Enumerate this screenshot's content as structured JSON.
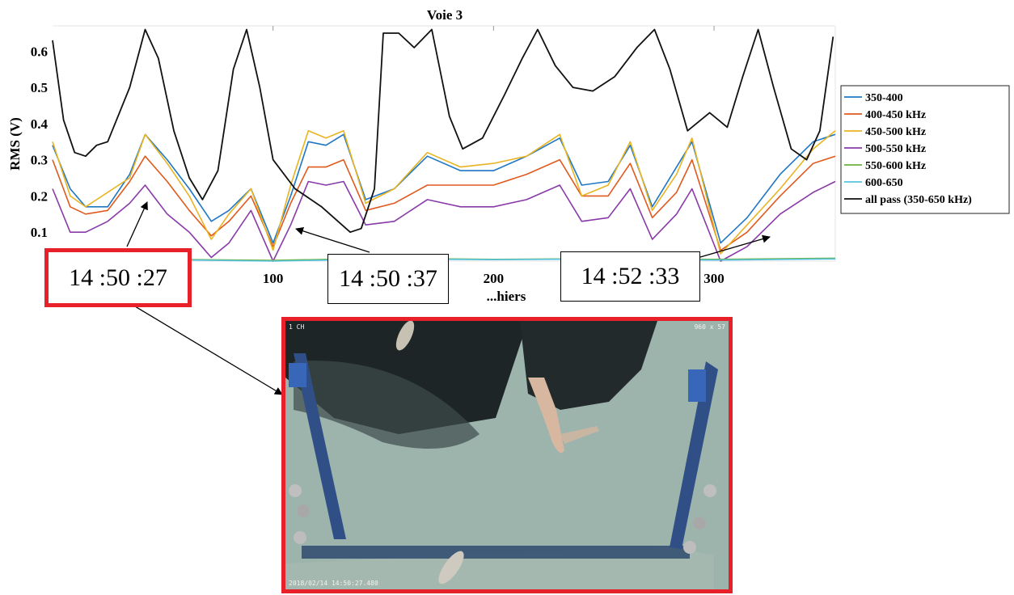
{
  "chart_data": {
    "type": "line",
    "title": "Voie 3",
    "ylabel": "RMS (V)",
    "xlabel": "...hiers",
    "xlim": [
      0,
      355
    ],
    "ylim": [
      0.02,
      0.67
    ],
    "x_ticks": [
      100,
      200,
      300
    ],
    "y_ticks": [
      0.1,
      0.2,
      0.3,
      0.4,
      0.5,
      0.6
    ],
    "y_tick_labels": [
      "0.1",
      "0.2",
      "0.3",
      "0.4",
      "0.5",
      "0.6"
    ],
    "legend_position": "right",
    "series": [
      {
        "name": "350-400",
        "color": "#1f77c4",
        "points": [
          [
            0,
            0.34
          ],
          [
            8,
            0.22
          ],
          [
            15,
            0.17
          ],
          [
            25,
            0.17
          ],
          [
            35,
            0.26
          ],
          [
            42,
            0.37
          ],
          [
            52,
            0.3
          ],
          [
            62,
            0.22
          ],
          [
            72,
            0.13
          ],
          [
            80,
            0.16
          ],
          [
            90,
            0.22
          ],
          [
            100,
            0.07
          ],
          [
            108,
            0.2
          ],
          [
            116,
            0.35
          ],
          [
            124,
            0.34
          ],
          [
            132,
            0.37
          ],
          [
            142,
            0.19
          ],
          [
            155,
            0.22
          ],
          [
            170,
            0.31
          ],
          [
            185,
            0.27
          ],
          [
            200,
            0.27
          ],
          [
            215,
            0.31
          ],
          [
            230,
            0.36
          ],
          [
            240,
            0.23
          ],
          [
            252,
            0.24
          ],
          [
            262,
            0.34
          ],
          [
            272,
            0.17
          ],
          [
            283,
            0.28
          ],
          [
            290,
            0.35
          ],
          [
            303,
            0.07
          ],
          [
            315,
            0.14
          ],
          [
            330,
            0.26
          ],
          [
            345,
            0.35
          ],
          [
            355,
            0.37
          ]
        ]
      },
      {
        "name": "400-450 kHz",
        "color": "#e05a1e",
        "points": [
          [
            0,
            0.3
          ],
          [
            8,
            0.17
          ],
          [
            15,
            0.15
          ],
          [
            25,
            0.16
          ],
          [
            35,
            0.24
          ],
          [
            42,
            0.31
          ],
          [
            52,
            0.24
          ],
          [
            62,
            0.16
          ],
          [
            72,
            0.09
          ],
          [
            80,
            0.13
          ],
          [
            90,
            0.2
          ],
          [
            100,
            0.06
          ],
          [
            108,
            0.18
          ],
          [
            116,
            0.28
          ],
          [
            124,
            0.28
          ],
          [
            132,
            0.3
          ],
          [
            142,
            0.16
          ],
          [
            155,
            0.18
          ],
          [
            170,
            0.23
          ],
          [
            185,
            0.23
          ],
          [
            200,
            0.23
          ],
          [
            215,
            0.26
          ],
          [
            230,
            0.3
          ],
          [
            240,
            0.2
          ],
          [
            252,
            0.2
          ],
          [
            262,
            0.29
          ],
          [
            272,
            0.14
          ],
          [
            283,
            0.21
          ],
          [
            290,
            0.3
          ],
          [
            303,
            0.05
          ],
          [
            315,
            0.1
          ],
          [
            330,
            0.2
          ],
          [
            345,
            0.29
          ],
          [
            355,
            0.31
          ]
        ]
      },
      {
        "name": "450-500 kHz",
        "color": "#e8b422",
        "points": [
          [
            0,
            0.35
          ],
          [
            8,
            0.2
          ],
          [
            15,
            0.17
          ],
          [
            25,
            0.21
          ],
          [
            35,
            0.25
          ],
          [
            42,
            0.37
          ],
          [
            52,
            0.29
          ],
          [
            62,
            0.2
          ],
          [
            72,
            0.08
          ],
          [
            80,
            0.15
          ],
          [
            90,
            0.22
          ],
          [
            100,
            0.05
          ],
          [
            108,
            0.23
          ],
          [
            116,
            0.38
          ],
          [
            124,
            0.36
          ],
          [
            132,
            0.38
          ],
          [
            142,
            0.18
          ],
          [
            155,
            0.22
          ],
          [
            170,
            0.32
          ],
          [
            185,
            0.28
          ],
          [
            200,
            0.29
          ],
          [
            215,
            0.31
          ],
          [
            230,
            0.37
          ],
          [
            240,
            0.2
          ],
          [
            252,
            0.23
          ],
          [
            262,
            0.35
          ],
          [
            272,
            0.16
          ],
          [
            283,
            0.26
          ],
          [
            290,
            0.36
          ],
          [
            303,
            0.04
          ],
          [
            315,
            0.12
          ],
          [
            330,
            0.22
          ],
          [
            345,
            0.33
          ],
          [
            355,
            0.38
          ]
        ]
      },
      {
        "name": "500-550 kHz",
        "color": "#8a3aa8",
        "points": [
          [
            0,
            0.22
          ],
          [
            8,
            0.1
          ],
          [
            15,
            0.1
          ],
          [
            25,
            0.13
          ],
          [
            35,
            0.18
          ],
          [
            42,
            0.23
          ],
          [
            52,
            0.15
          ],
          [
            62,
            0.1
          ],
          [
            72,
            0.03
          ],
          [
            80,
            0.07
          ],
          [
            90,
            0.16
          ],
          [
            100,
            0.02
          ],
          [
            108,
            0.12
          ],
          [
            116,
            0.24
          ],
          [
            124,
            0.23
          ],
          [
            132,
            0.24
          ],
          [
            142,
            0.12
          ],
          [
            155,
            0.13
          ],
          [
            170,
            0.19
          ],
          [
            185,
            0.17
          ],
          [
            200,
            0.17
          ],
          [
            215,
            0.19
          ],
          [
            230,
            0.23
          ],
          [
            240,
            0.13
          ],
          [
            252,
            0.14
          ],
          [
            262,
            0.22
          ],
          [
            272,
            0.08
          ],
          [
            283,
            0.15
          ],
          [
            290,
            0.22
          ],
          [
            303,
            0.02
          ],
          [
            315,
            0.06
          ],
          [
            330,
            0.15
          ],
          [
            345,
            0.21
          ],
          [
            355,
            0.24
          ]
        ]
      },
      {
        "name": "550-600 kHz",
        "color": "#6db33f",
        "points": [
          [
            0,
            0.03
          ],
          [
            50,
            0.025
          ],
          [
            100,
            0.022
          ],
          [
            150,
            0.028
          ],
          [
            200,
            0.025
          ],
          [
            250,
            0.027
          ],
          [
            300,
            0.025
          ],
          [
            355,
            0.028
          ]
        ]
      },
      {
        "name": "600-650",
        "color": "#57c3e0",
        "points": [
          [
            0,
            0.028
          ],
          [
            50,
            0.024
          ],
          [
            100,
            0.02
          ],
          [
            150,
            0.026
          ],
          [
            200,
            0.024
          ],
          [
            250,
            0.026
          ],
          [
            300,
            0.023
          ],
          [
            355,
            0.026
          ]
        ]
      },
      {
        "name": "all pass (350-650 kHz)",
        "color": "#111111",
        "points": [
          [
            0,
            0.63
          ],
          [
            5,
            0.41
          ],
          [
            10,
            0.32
          ],
          [
            15,
            0.31
          ],
          [
            20,
            0.34
          ],
          [
            25,
            0.35
          ],
          [
            35,
            0.5
          ],
          [
            42,
            0.66
          ],
          [
            48,
            0.58
          ],
          [
            55,
            0.38
          ],
          [
            62,
            0.25
          ],
          [
            68,
            0.19
          ],
          [
            75,
            0.27
          ],
          [
            82,
            0.55
          ],
          [
            88,
            0.66
          ],
          [
            94,
            0.5
          ],
          [
            100,
            0.3
          ],
          [
            110,
            0.22
          ],
          [
            122,
            0.17
          ],
          [
            135,
            0.1
          ],
          [
            140,
            0.11
          ],
          [
            146,
            0.22
          ],
          [
            150,
            0.65
          ],
          [
            157,
            0.65
          ],
          [
            164,
            0.61
          ],
          [
            172,
            0.66
          ],
          [
            180,
            0.42
          ],
          [
            186,
            0.33
          ],
          [
            195,
            0.36
          ],
          [
            205,
            0.48
          ],
          [
            213,
            0.58
          ],
          [
            220,
            0.66
          ],
          [
            228,
            0.56
          ],
          [
            236,
            0.5
          ],
          [
            245,
            0.49
          ],
          [
            255,
            0.53
          ],
          [
            265,
            0.61
          ],
          [
            273,
            0.66
          ],
          [
            280,
            0.55
          ],
          [
            288,
            0.38
          ],
          [
            298,
            0.43
          ],
          [
            306,
            0.39
          ],
          [
            313,
            0.53
          ],
          [
            320,
            0.66
          ],
          [
            327,
            0.5
          ],
          [
            335,
            0.33
          ],
          [
            342,
            0.3
          ],
          [
            348,
            0.38
          ],
          [
            354,
            0.64
          ]
        ]
      }
    ]
  },
  "annotations": {
    "time_1": "14 :50 :27",
    "time_2": "14 :50 :37",
    "time_3": "14 :52 :33"
  },
  "video": {
    "channel": "1 CH",
    "resolution": "960 x 57",
    "timestamp": "2018/02/14 14:50:27.480"
  }
}
